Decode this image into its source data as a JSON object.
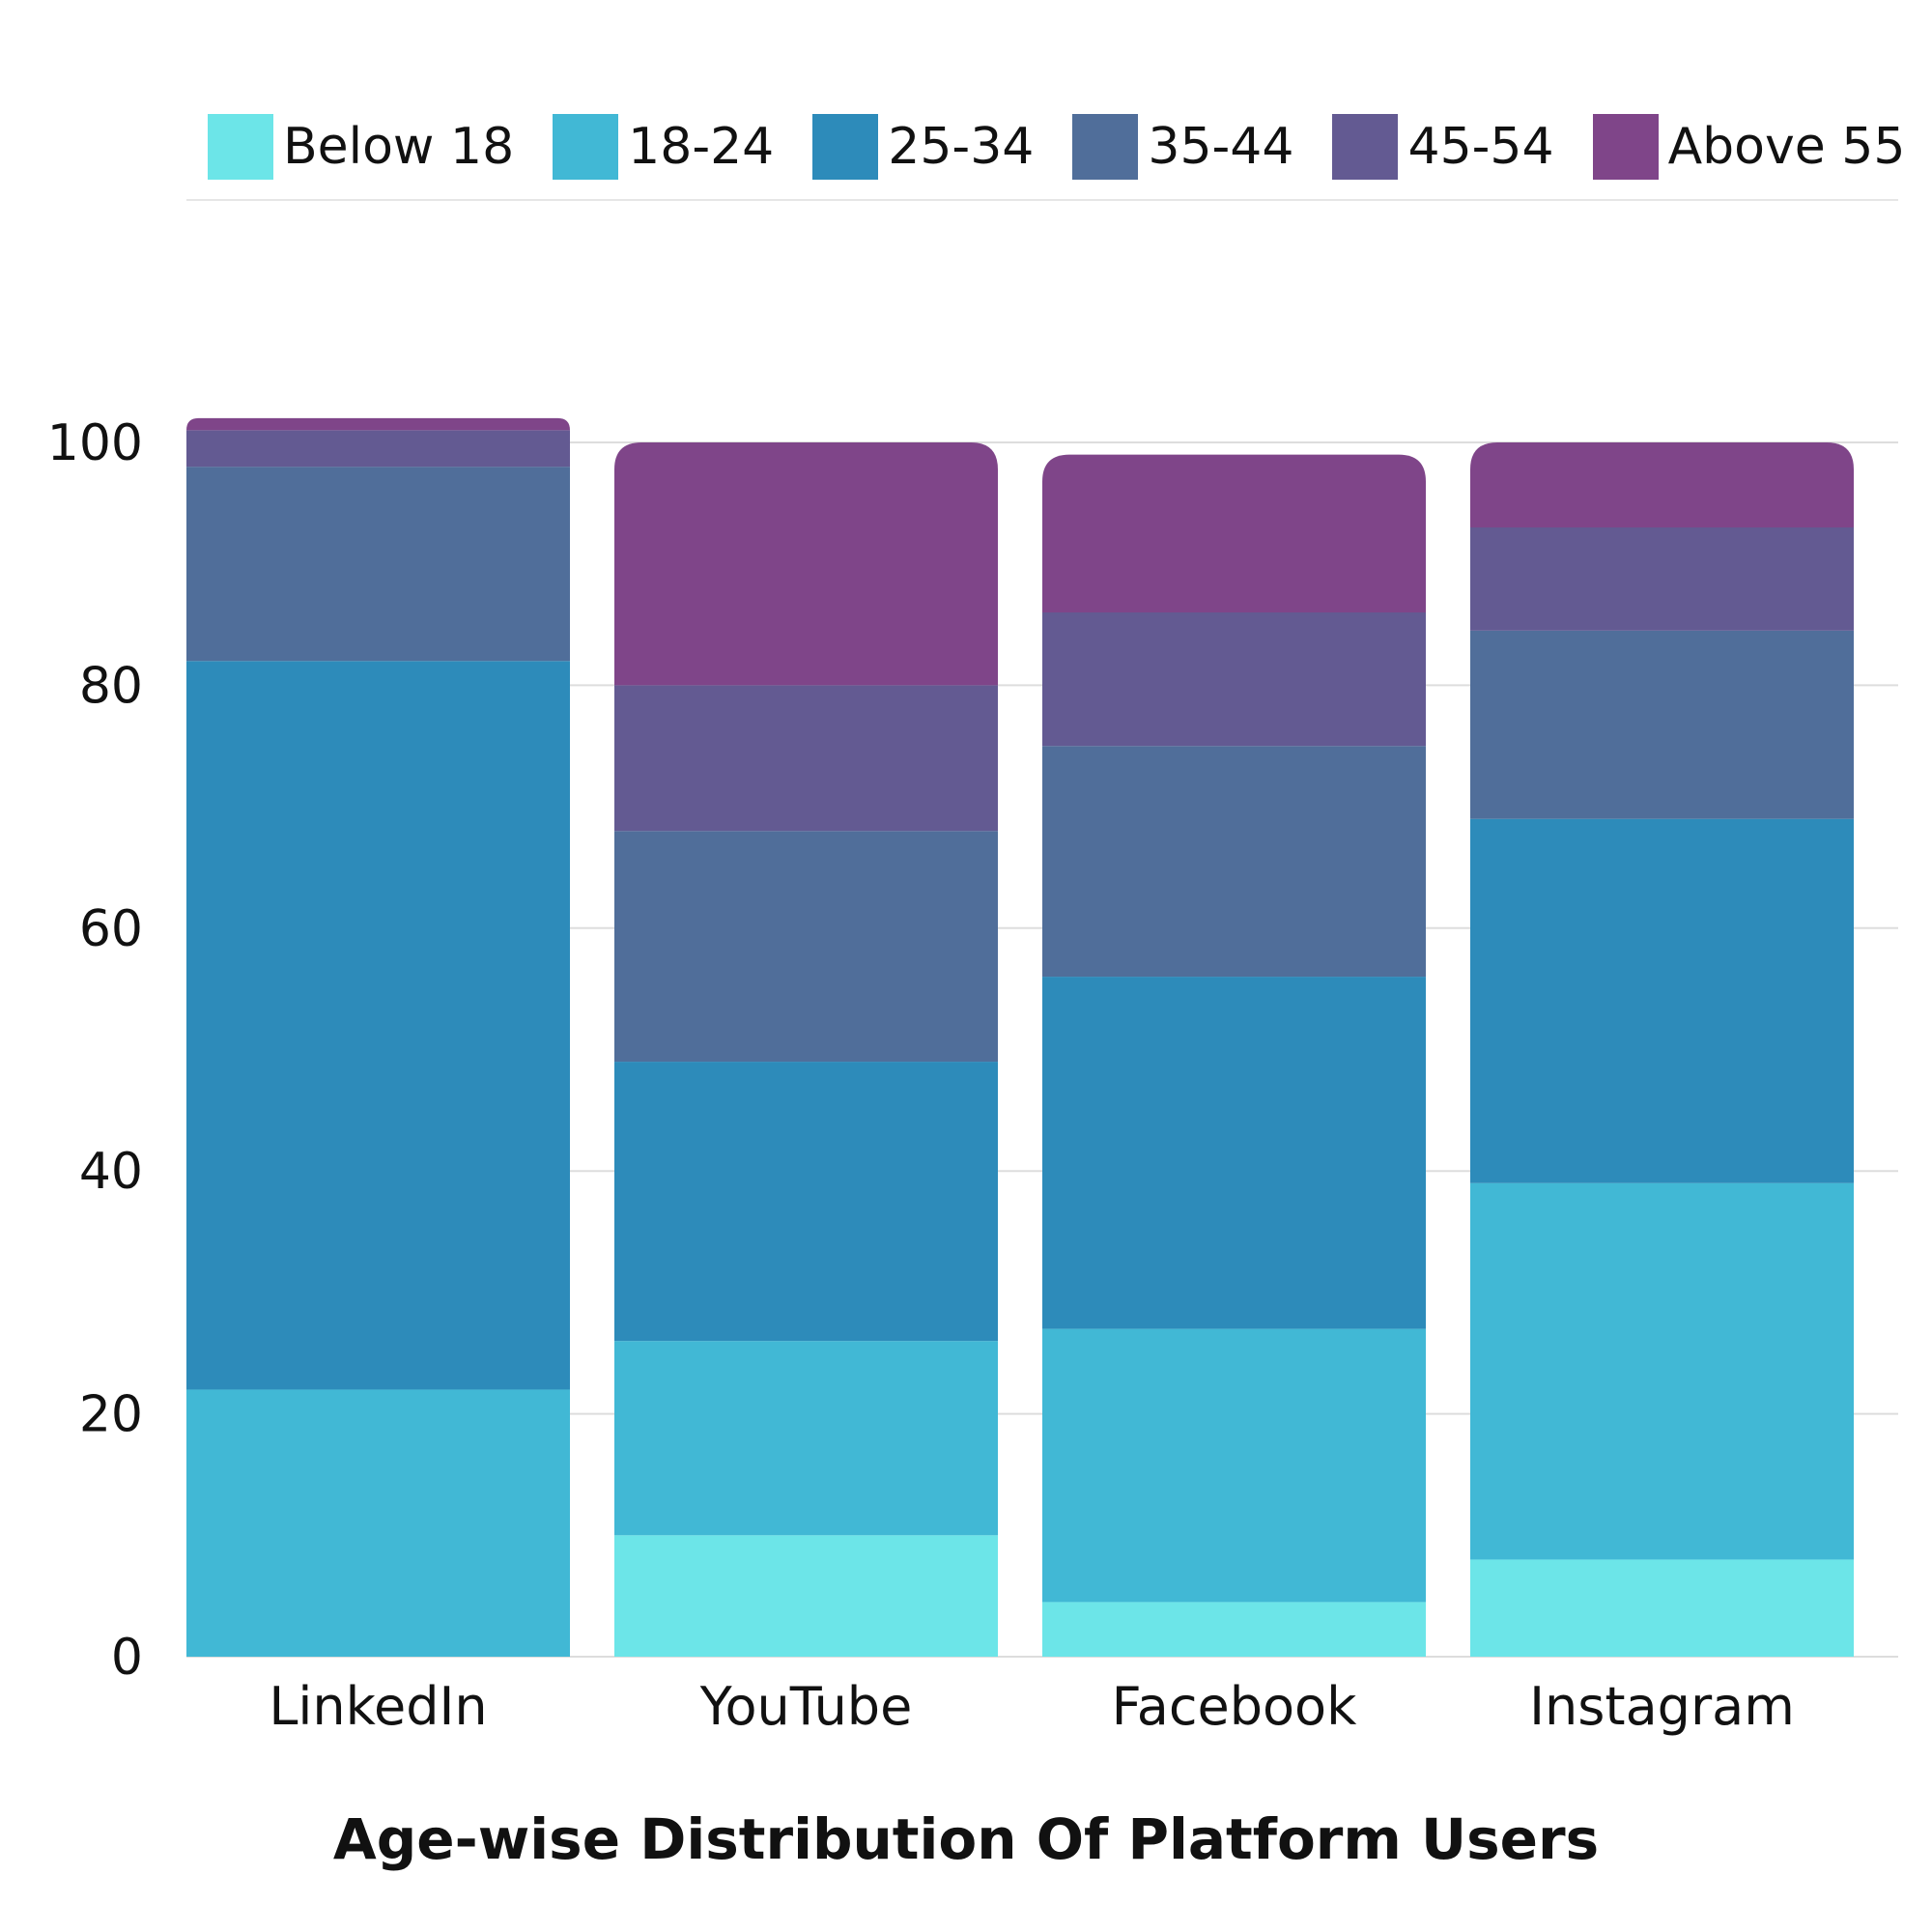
{
  "chart_data": {
    "type": "bar",
    "stacked": true,
    "title": "Age-wise Distribution Of Platform Users",
    "xlabel": "",
    "ylabel": "",
    "categories": [
      "LinkedIn",
      "YouTube",
      "Facebook",
      "Instagram"
    ],
    "yticks": [
      "0",
      "20",
      "40",
      "60",
      "80",
      "100"
    ],
    "ylim": [
      0,
      100
    ],
    "grid": true,
    "legend_position": "top",
    "series": [
      {
        "name": "Below 18",
        "color": "#6CE5E8",
        "values": [
          0,
          10,
          4.5,
          8
        ]
      },
      {
        "name": "18-24",
        "color": "#41B8D5",
        "values": [
          22,
          16,
          22.5,
          31
        ]
      },
      {
        "name": "25-34",
        "color": "#2D8BBA",
        "values": [
          60,
          23,
          29,
          30
        ]
      },
      {
        "name": "35-44",
        "color": "#506E9A",
        "values": [
          16,
          19,
          19,
          15.5
        ]
      },
      {
        "name": "45-54",
        "color": "#635A92",
        "values": [
          3,
          12,
          11,
          8.5
        ]
      },
      {
        "name": "Above 55",
        "color": "#7F4589",
        "values": [
          1,
          20,
          13,
          7
        ]
      }
    ]
  }
}
